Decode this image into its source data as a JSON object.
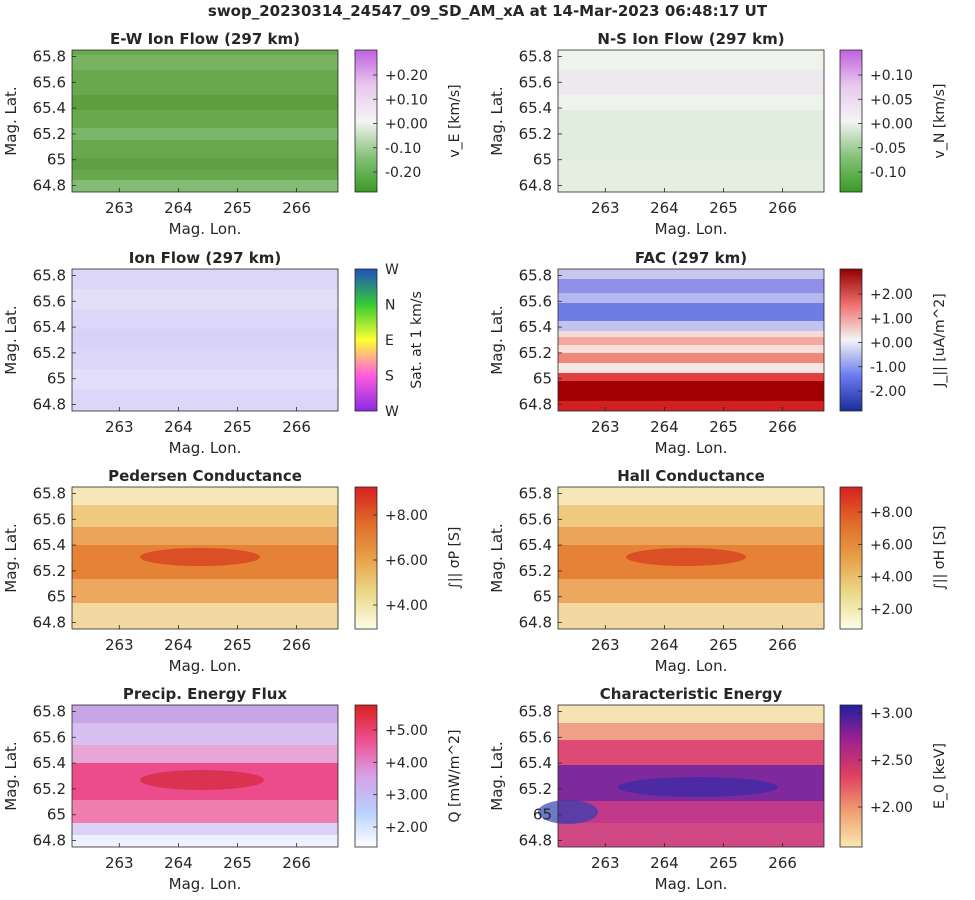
{
  "title": "swop_20230314_24547_09_SD_AM_xA at 14-Mar-2023 06:48:17 UT",
  "colors": {
    "axis": "#262626",
    "background": "#ffffff"
  },
  "chart_data": [
    {
      "type": "heatmap",
      "title": "E-W Ion Flow (297 km)",
      "xlabel": "Mag. Lon.",
      "ylabel": "Mag. Lat.",
      "xticks": [
        "263",
        "264",
        "265",
        "266"
      ],
      "yticks": [
        "64.8",
        "65",
        "65.2",
        "65.4",
        "65.6",
        "65.8"
      ],
      "colorbar": {
        "label": "v_E [km/s]",
        "ticks": [
          "+0.20",
          "+0.10",
          "+0.00",
          "-0.10",
          "-0.20"
        ]
      },
      "colormap": "green-white-purple",
      "fill_value_approx": "-0.15 to -0.25"
    },
    {
      "type": "heatmap",
      "title": "N-S Ion Flow (297 km)",
      "xlabel": "Mag. Lon.",
      "ylabel": "Mag. Lat.",
      "xticks": [
        "263",
        "264",
        "265",
        "266"
      ],
      "yticks": [
        "64.8",
        "65",
        "65.2",
        "65.4",
        "65.6",
        "65.8"
      ],
      "colorbar": {
        "label": "v_N [km/s]",
        "ticks": [
          "+0.10",
          "+0.05",
          "+0.00",
          "-0.05",
          "-0.10"
        ]
      },
      "colormap": "green-white-purple",
      "fill_value_approx": "-0.03 to +0.03"
    },
    {
      "type": "heatmap",
      "title": "Ion Flow (297 km)",
      "xlabel": "Mag. Lon.",
      "ylabel": "Mag. Lat.",
      "xticks": [
        "263",
        "264",
        "265",
        "266"
      ],
      "yticks": [
        "64.8",
        "65",
        "65.2",
        "65.4",
        "65.6",
        "65.8"
      ],
      "colorbar": {
        "label": "Sat. at 1 km/s",
        "ticks": [
          "W",
          "N",
          "E",
          "S",
          "W"
        ]
      },
      "colormap": "cyclic-direction"
    },
    {
      "type": "heatmap",
      "title": "FAC (297 km)",
      "xlabel": "Mag. Lon.",
      "ylabel": "Mag. Lat.",
      "xticks": [
        "263",
        "264",
        "265",
        "266"
      ],
      "yticks": [
        "64.8",
        "65",
        "65.2",
        "65.4",
        "65.6",
        "65.8"
      ],
      "colorbar": {
        "label": "J_|| [uA/m^2]",
        "ticks": [
          "+2.00",
          "+1.00",
          "+0.00",
          "-1.00",
          "-2.00"
        ]
      },
      "colormap": "blue-white-red"
    },
    {
      "type": "heatmap",
      "title": "Pedersen Conductance",
      "xlabel": "Mag. Lon.",
      "ylabel": "Mag. Lat.",
      "xticks": [
        "263",
        "264",
        "265",
        "266"
      ],
      "yticks": [
        "64.8",
        "65",
        "65.2",
        "65.4",
        "65.6",
        "65.8"
      ],
      "colorbar": {
        "label": "∫|| σP [S]",
        "ticks": [
          "+8.00",
          "+6.00",
          "+4.00"
        ]
      },
      "colormap": "yellow-orange-red"
    },
    {
      "type": "heatmap",
      "title": "Hall Conductance",
      "xlabel": "Mag. Lon.",
      "ylabel": "Mag. Lat.",
      "xticks": [
        "263",
        "264",
        "265",
        "266"
      ],
      "yticks": [
        "64.8",
        "65",
        "65.2",
        "65.4",
        "65.6",
        "65.8"
      ],
      "colorbar": {
        "label": "∫|| σH [S]",
        "ticks": [
          "+8.00",
          "+6.00",
          "+4.00",
          "+2.00"
        ]
      },
      "colormap": "yellow-orange-red"
    },
    {
      "type": "heatmap",
      "title": "Precip. Energy Flux",
      "xlabel": "Mag. Lon.",
      "ylabel": "Mag. Lat.",
      "xticks": [
        "263",
        "264",
        "265",
        "266"
      ],
      "yticks": [
        "64.8",
        "65",
        "65.2",
        "65.4",
        "65.6",
        "65.8"
      ],
      "colorbar": {
        "label": "Q [mW/m^2]",
        "ticks": [
          "+5.00",
          "+4.00",
          "+3.00",
          "+2.00"
        ]
      },
      "colormap": "white-blue-pink-red"
    },
    {
      "type": "heatmap",
      "title": "Characteristic Energy",
      "xlabel": "Mag. Lon.",
      "ylabel": "Mag. Lat.",
      "xticks": [
        "263",
        "264",
        "265",
        "266"
      ],
      "yticks": [
        "64.8",
        "65",
        "65.2",
        "65.4",
        "65.6",
        "65.8"
      ],
      "colorbar": {
        "label": "E_0 [keV]",
        "ticks": [
          "+3.00",
          "+2.50",
          "+2.00"
        ]
      },
      "colormap": "yellow-red-purple-blue"
    }
  ]
}
